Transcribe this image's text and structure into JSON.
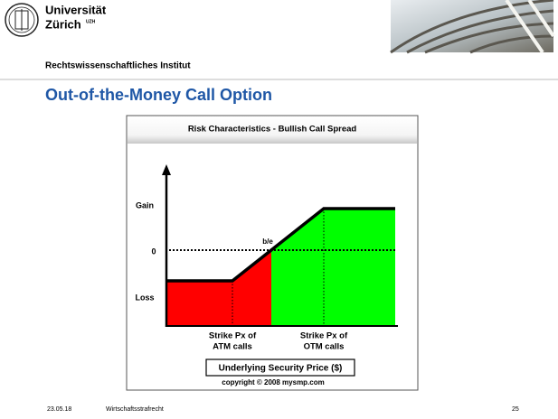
{
  "header": {
    "university": "Universität",
    "city": "Zürich",
    "city_mark": "UZH",
    "institute": "Rechtswissenschaftliches Institut"
  },
  "slide": {
    "title": "Out-of-the-Money Call Option"
  },
  "diagram": {
    "title": "Risk Characteristics - Bullish Call Spread",
    "y_labels": [
      "Gain",
      "0",
      "Loss"
    ],
    "breakeven": "b/e",
    "strike_labels": [
      [
        "Strike Px of",
        "ATM calls"
      ],
      [
        "Strike Px of",
        "OTM calls"
      ]
    ],
    "x_axis_label": "Underlying Security Price ($)",
    "copyright": "copyright © 2008 mysmp.com"
  },
  "footer": {
    "date": "23.05.18",
    "course": "Wirtschaftsstrafrecht",
    "page": "25"
  }
}
